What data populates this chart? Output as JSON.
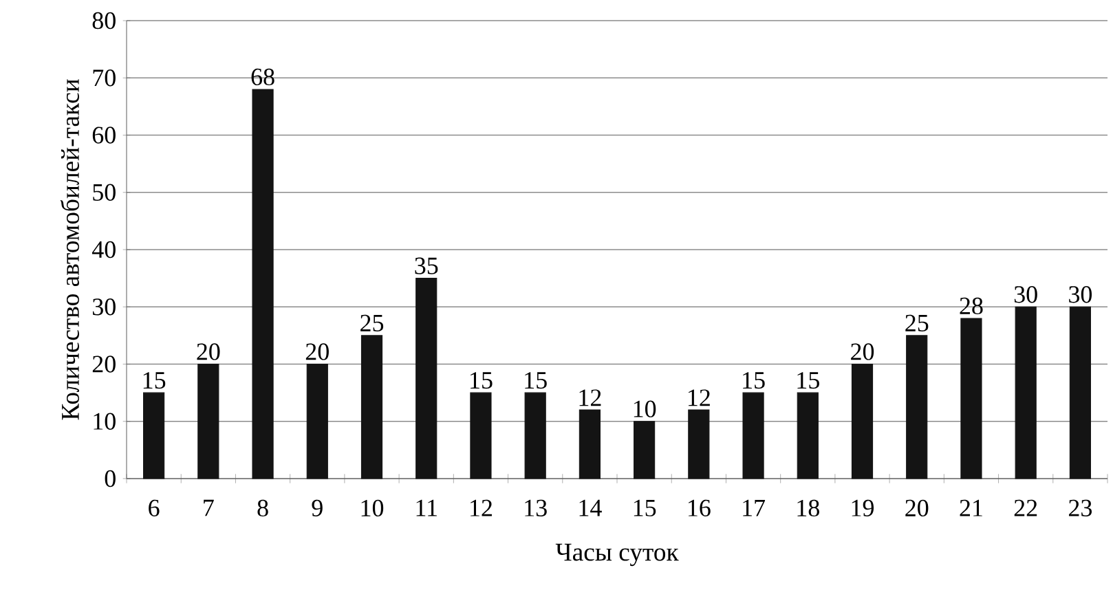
{
  "chart_data": {
    "type": "bar",
    "xlabel": "Часы суток",
    "ylabel": "Количество автомобилей-такси",
    "categories": [
      "6",
      "7",
      "8",
      "9",
      "10",
      "11",
      "12",
      "13",
      "14",
      "15",
      "16",
      "17",
      "18",
      "19",
      "20",
      "21",
      "22",
      "23"
    ],
    "values": [
      15,
      20,
      68,
      20,
      25,
      35,
      15,
      15,
      12,
      10,
      12,
      15,
      15,
      20,
      25,
      28,
      30,
      30
    ],
    "color": "#141414",
    "ylim": [
      0,
      80
    ],
    "yticks": [
      0,
      10,
      20,
      30,
      40,
      50,
      60,
      70,
      80
    ],
    "grid": "y",
    "data_labels": true
  }
}
